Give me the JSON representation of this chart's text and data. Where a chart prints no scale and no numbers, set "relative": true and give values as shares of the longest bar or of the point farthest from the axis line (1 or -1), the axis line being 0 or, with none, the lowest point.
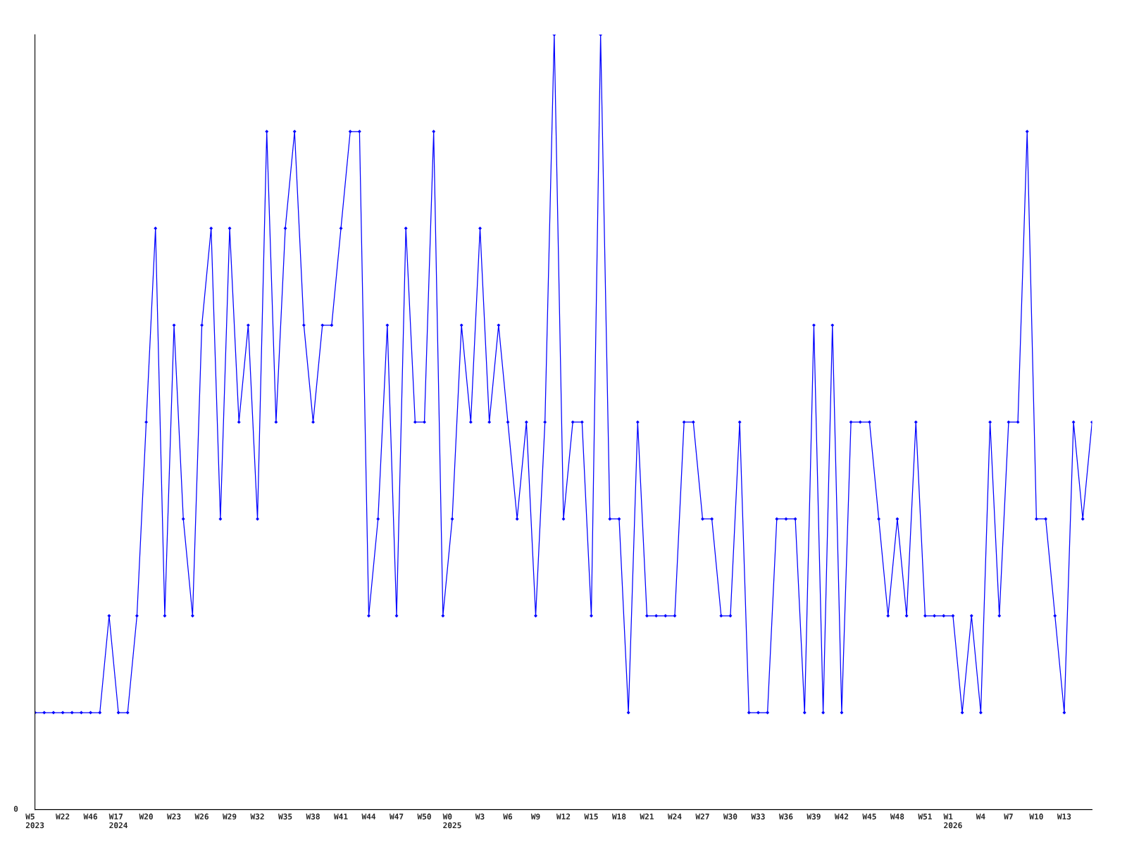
{
  "chart_data": {
    "type": "line",
    "relative": true,
    "marker": "diamond",
    "line_style": "solid",
    "grid": false,
    "legend": false,
    "categories": [
      "W5\n2023",
      null,
      null,
      "W22",
      null,
      null,
      "W46",
      null,
      null,
      "W17\n2024",
      null,
      null,
      "W20",
      null,
      null,
      "W23",
      null,
      null,
      "W26",
      null,
      null,
      "W29",
      null,
      null,
      "W32",
      null,
      null,
      "W35",
      null,
      null,
      "W38",
      null,
      null,
      "W41",
      null,
      null,
      "W44",
      null,
      null,
      "W47",
      null,
      null,
      "W50",
      null,
      null,
      "W0\n2025",
      null,
      null,
      "W3",
      null,
      null,
      "W6",
      null,
      null,
      "W9",
      null,
      null,
      "W12",
      null,
      null,
      "W15",
      null,
      null,
      "W18",
      null,
      null,
      "W21",
      null,
      null,
      "W24",
      null,
      null,
      "W27",
      null,
      null,
      "W30",
      null,
      null,
      "W33",
      null,
      null,
      "W36",
      null,
      null,
      "W39",
      null,
      null,
      "W42",
      null,
      null,
      "W45",
      null,
      null,
      "W48",
      null,
      null,
      "W51",
      null,
      null,
      "W1\n2026",
      null,
      null,
      "W4",
      null,
      null,
      "W7",
      null,
      null,
      "W10",
      null,
      null,
      "W13",
      null,
      null,
      null
    ],
    "series": [
      {
        "color": "#0000ff",
        "values": [
          0.125,
          0.125,
          0.125,
          0.125,
          0.125,
          0.125,
          0.125,
          0.125,
          0.25,
          0.125,
          0.125,
          0.25,
          0.5,
          0.75,
          0.25,
          0.625,
          0.375,
          0.25,
          0.625,
          0.75,
          0.375,
          0.75,
          0.5,
          0.625,
          0.375,
          0.875,
          0.5,
          0.75,
          0.875,
          0.625,
          0.5,
          0.625,
          0.625,
          0.75,
          0.875,
          0.875,
          0.25,
          0.375,
          0.625,
          0.25,
          0.75,
          0.5,
          0.5,
          0.875,
          0.25,
          0.375,
          0.625,
          0.5,
          0.75,
          0.5,
          0.625,
          0.5,
          0.375,
          0.5,
          0.25,
          0.5,
          1,
          0.375,
          0.5,
          0.5,
          0.25,
          1,
          0.375,
          0.375,
          0.125,
          0.5,
          0.25,
          0.25,
          0.25,
          0.25,
          0.5,
          0.5,
          0.375,
          0.375,
          0.25,
          0.25,
          0.5,
          0.125,
          0.125,
          0.125,
          0.375,
          0.375,
          0.375,
          0.125,
          0.625,
          0.125,
          0.625,
          0.125,
          0.5,
          0.5,
          0.5,
          0.375,
          0.25,
          0.375,
          0.25,
          0.5,
          0.25,
          0.25,
          0.25,
          0.25,
          0.125,
          0.25,
          0.125,
          0.5,
          0.25,
          0.5,
          0.5,
          0.875,
          0.375,
          0.375,
          0.25,
          0.125,
          0.5,
          0.375,
          0.5
        ]
      }
    ],
    "annotations": [
      "0"
    ]
  }
}
